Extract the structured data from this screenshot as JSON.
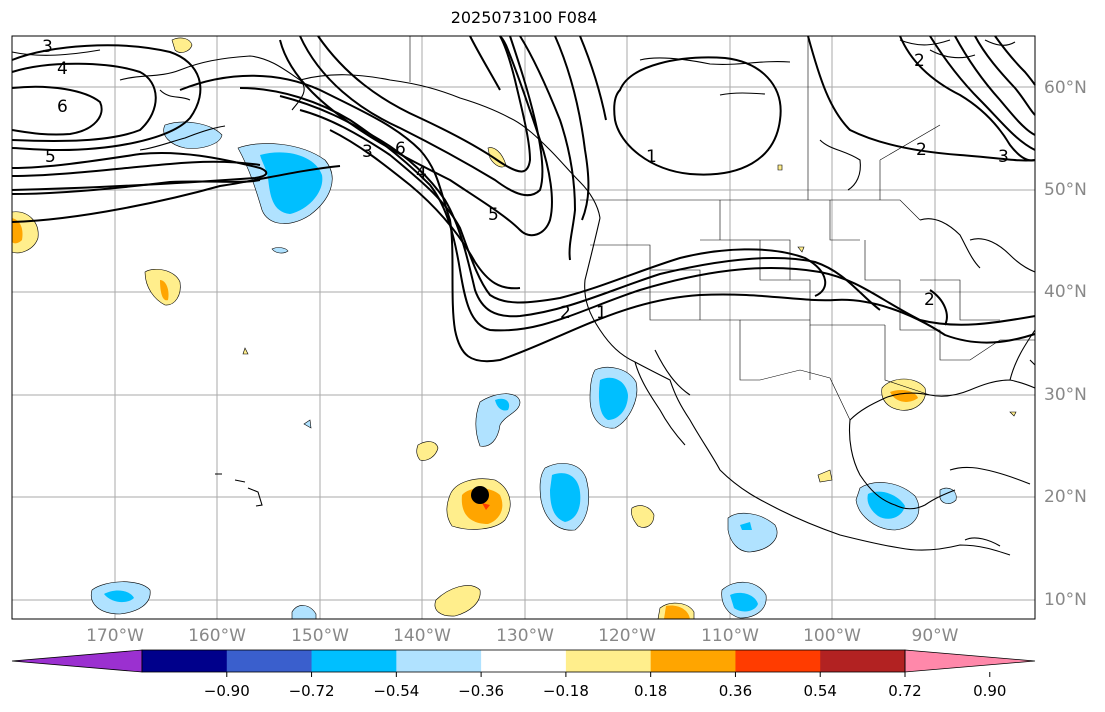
{
  "title": "2025073100 F084",
  "lat_labels": [
    "60°N",
    "50°N",
    "40°N",
    "30°N",
    "20°N",
    "10°N"
  ],
  "lon_labels": [
    "170°W",
    "160°W",
    "150°W",
    "140°W",
    "130°W",
    "120°W",
    "110°W",
    "100°W",
    "90°W"
  ],
  "contour_labels": [
    "3",
    "4",
    "6",
    "5",
    "3",
    "6",
    "4",
    "5",
    "2",
    "1",
    "2",
    "1",
    "2",
    "2",
    "3"
  ],
  "colorbar": {
    "ticks": [
      "−0.90",
      "−0.72",
      "−0.54",
      "−0.36",
      "−0.18",
      "0.18",
      "0.36",
      "0.54",
      "0.72",
      "0.90"
    ],
    "colors": [
      "#9b30d0",
      "#00008b",
      "#3a5fcd",
      "#00bfff",
      "#b0e2ff",
      "#ffffff",
      "#ffee8c",
      "#ffa500",
      "#ff3c00",
      "#b22222",
      "#ff88aa"
    ]
  },
  "colors": {
    "contour": "#000000",
    "grid": "#aaaaaa",
    "coast": "#000000",
    "marker": "#000000"
  }
}
